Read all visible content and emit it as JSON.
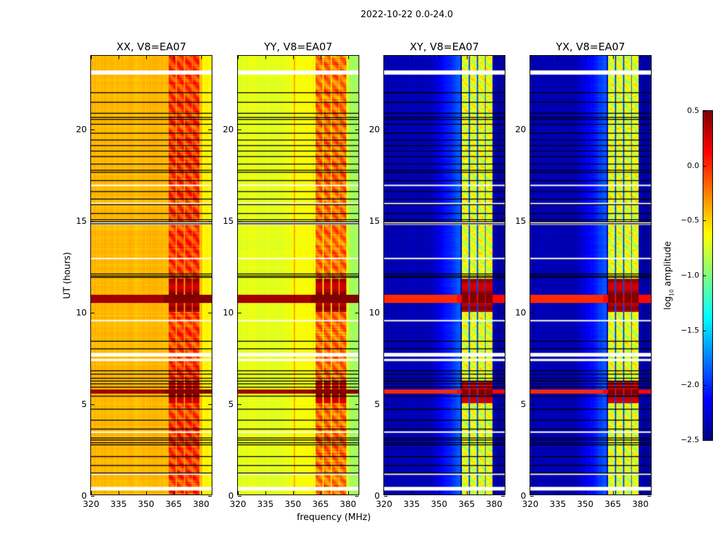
{
  "chart_data": {
    "type": "heatmap",
    "title": "2022-10-22 0.0-24.0",
    "xlabel": "frequency (MHz)",
    "ylabel": "UT (hours)",
    "xlim": [
      320,
      386.5
    ],
    "ylim": [
      0,
      24
    ],
    "xticks": [
      "320",
      "335",
      "350",
      "365",
      "380"
    ],
    "yticks": [
      "0",
      "5",
      "10",
      "15",
      "20"
    ],
    "colormap": "jet",
    "colorbar": {
      "label_prefix": "log",
      "label_sub": "10",
      "label_suffix": " amplitude",
      "vmin": -2.5,
      "vmax": 0.5,
      "ticks": [
        "0.5",
        "0.0",
        "−0.5",
        "−1.0",
        "−1.5",
        "−2.0",
        "−2.5"
      ]
    },
    "panels": [
      {
        "title": "XX, V8=EA07",
        "baseline": -0.42,
        "edge_level": -0.6,
        "ramp": 0.0,
        "rfi_level": -0.05,
        "rfi_gap": -0.3,
        "strong_level": 0.5,
        "line_level": 0.5,
        "spur_freq": null
      },
      {
        "title": "YY, V8=EA07",
        "baseline": -0.7,
        "edge_level": -0.9,
        "ramp": 0.1,
        "rfi_level": -0.2,
        "rfi_gap": -0.5,
        "strong_level": 0.5,
        "line_level": 0.5,
        "spur_freq": 351
      },
      {
        "title": "XY, V8=EA07",
        "baseline": -2.35,
        "edge_level": -2.4,
        "ramp": 0.5,
        "rfi_level": -0.7,
        "rfi_gap": -1.9,
        "strong_level": 0.5,
        "line_level": 0.1,
        "spur_freq": null
      },
      {
        "title": "YX, V8=EA07",
        "baseline": -2.35,
        "edge_level": -2.4,
        "ramp": 0.5,
        "rfi_level": -0.7,
        "rfi_gap": -1.9,
        "strong_level": 0.5,
        "line_level": 0.1,
        "spur_freq": null
      }
    ],
    "rfi_subbands_mhz": [
      [
        362.5,
        366.5
      ],
      [
        367,
        371
      ],
      [
        371.5,
        375.3
      ],
      [
        375.8,
        379.6
      ]
    ],
    "strong_rfi_times_h": [
      [
        10.0,
        11.8
      ],
      [
        5.0,
        6.2
      ]
    ],
    "broadband_rfi_times_h": [
      [
        10.5,
        10.95
      ],
      [
        5.55,
        5.75
      ]
    ],
    "flagged_blank_times_h": [
      [
        22.97,
        23.2
      ],
      [
        0.22,
        0.42
      ],
      [
        7.55,
        7.75
      ],
      [
        7.3,
        7.42
      ],
      [
        14.75,
        14.9
      ],
      [
        12.9,
        12.95
      ],
      [
        9.5,
        9.55
      ],
      [
        3.4,
        3.45
      ],
      [
        15.9,
        15.95
      ],
      [
        16.9,
        16.95
      ],
      [
        1.1,
        1.15
      ]
    ],
    "flagged_line_times_h": [
      22.0,
      21.5,
      20.9,
      20.65,
      20.55,
      20.3,
      19.8,
      19.4,
      19.1,
      18.8,
      18.5,
      18.1,
      17.75,
      17.65,
      17.2,
      16.6,
      16.2,
      15.9,
      15.4,
      15.05,
      14.95,
      14.85,
      12.1,
      12.0,
      11.9,
      8.4,
      8.0,
      6.8,
      6.6,
      6.4,
      6.25,
      6.1,
      5.9,
      5.4,
      4.7,
      4.1,
      3.6,
      3.1,
      3.0,
      2.85,
      2.75,
      2.1,
      1.6,
      1.2
    ]
  }
}
